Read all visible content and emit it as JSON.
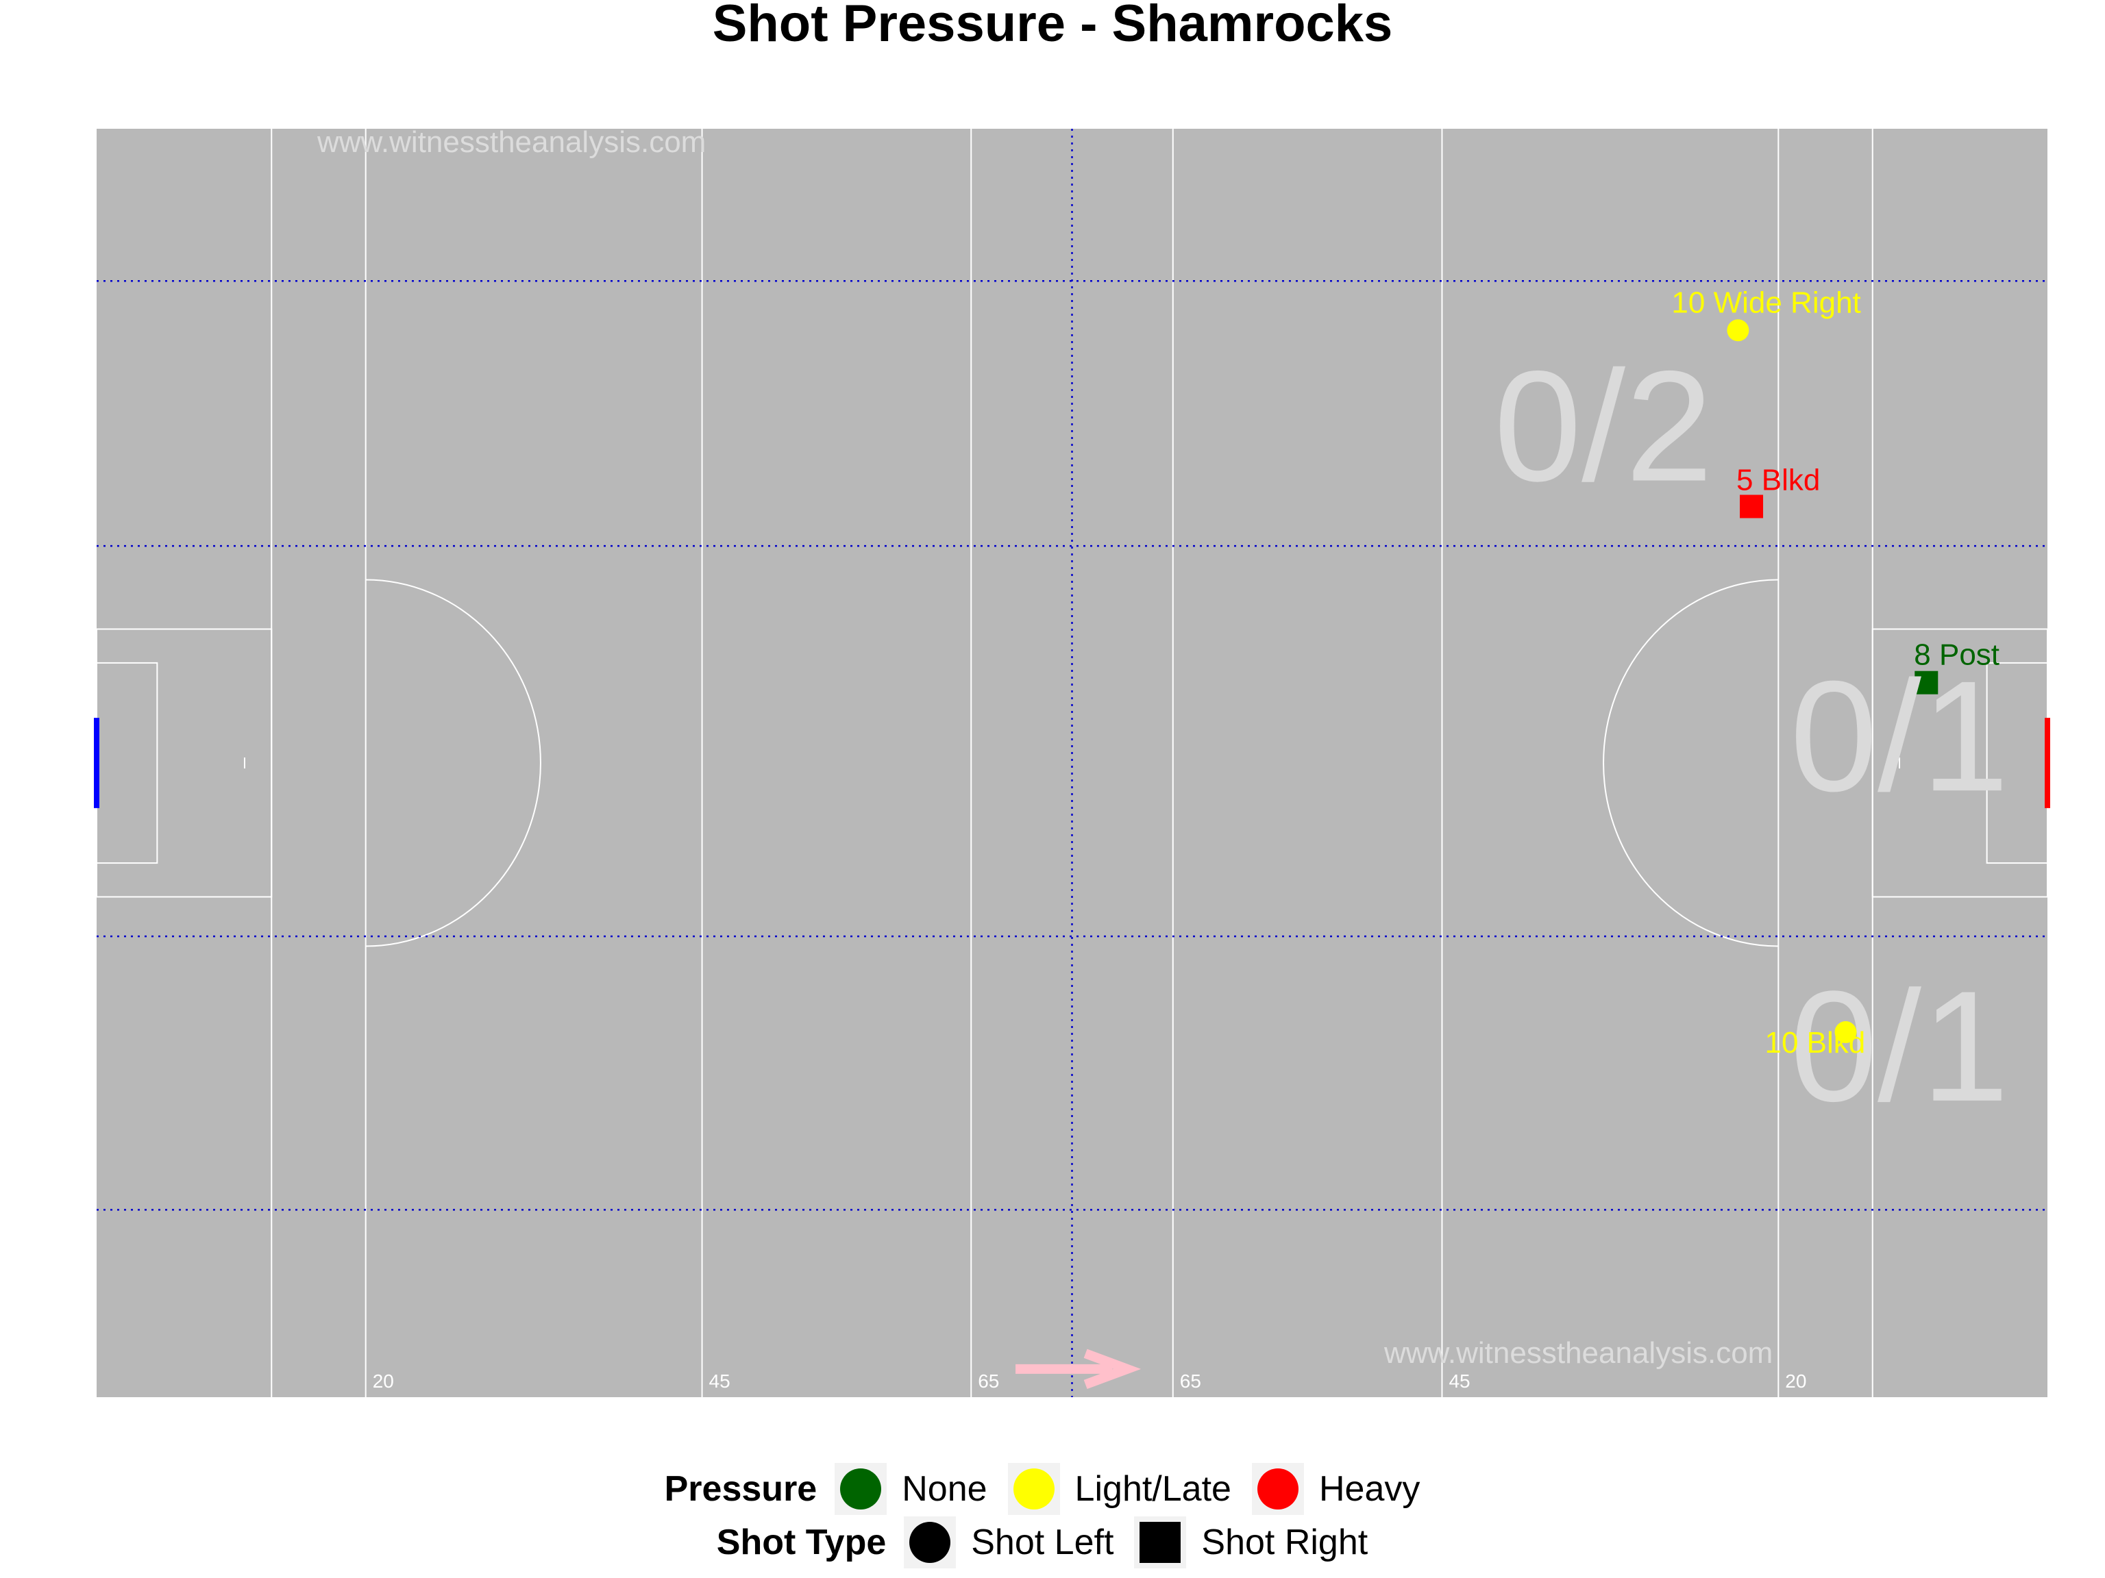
{
  "chart_data": {
    "type": "scatter",
    "title": "Shot Pressure - Shamrocks",
    "watermark": "www.witnesstheanalysis.com",
    "pitch": {
      "xlim": [
        0,
        145
      ],
      "ylim": [
        0,
        90
      ],
      "vertical_lines": [
        13,
        20,
        45,
        65,
        72.5,
        80,
        100,
        125,
        132
      ],
      "zone_lines_y": [
        13.3,
        32.7,
        60.4,
        79.2
      ],
      "distance_labels": [
        "20",
        "45",
        "65",
        "65",
        "45",
        "20"
      ]
    },
    "zone_tallies": [
      {
        "label": "0/2",
        "x": 112,
        "y": 68
      },
      {
        "label": "0/1",
        "x": 134,
        "y": 46
      },
      {
        "label": "0/1",
        "x": 134,
        "y": 24
      }
    ],
    "shots": [
      {
        "x": 122.0,
        "y": 75.7,
        "label": "10 Wide Right",
        "pressure": "Light/Late",
        "shot_type": "Shot Left"
      },
      {
        "x": 123.0,
        "y": 63.2,
        "label": "5 Blkd",
        "pressure": "Heavy",
        "shot_type": "Shot Right"
      },
      {
        "x": 136.0,
        "y": 50.7,
        "label": "8 Post",
        "pressure": "None",
        "shot_type": "Shot Right"
      },
      {
        "x": 130.0,
        "y": 25.9,
        "label": "10 Blkd",
        "pressure": "Light/Late",
        "shot_type": "Shot Left"
      }
    ],
    "colors": {
      "None": "#006400",
      "Light/Late": "#ffff00",
      "Heavy": "#ff0000",
      "pitch": "#b8b8b8",
      "left_goal": "#0000ff",
      "right_goal": "#ff0000",
      "arrow": "#ffc0cb"
    },
    "legend": {
      "pressure_title": "Pressure",
      "pressure_items": [
        "None",
        "Light/Late",
        "Heavy"
      ],
      "shot_type_title": "Shot Type",
      "shot_type_items": [
        "Shot Left",
        "Shot Right"
      ],
      "placement": "bottom"
    }
  }
}
